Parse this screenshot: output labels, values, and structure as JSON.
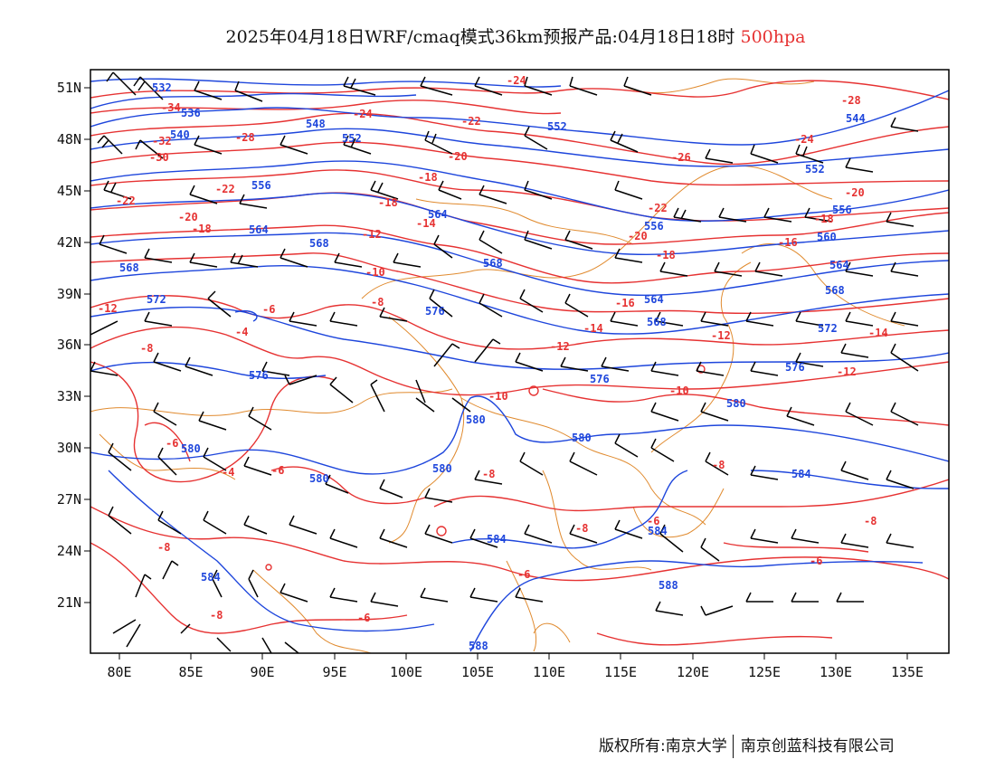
{
  "title": {
    "main": "2025年04月18日WRF/cmaq模式36km预报产品:04月18日18时",
    "level": "500hpa"
  },
  "footer": {
    "left": "版权所有:南京大学",
    "right": "南京创蓝科技有限公司"
  },
  "axes": {
    "x_ticks": [
      "80E",
      "85E",
      "90E",
      "95E",
      "100E",
      "105E",
      "110E",
      "115E",
      "120E",
      "125E",
      "130E",
      "135E"
    ],
    "y_ticks": [
      "51N",
      "48N",
      "45N",
      "42N",
      "39N",
      "36N",
      "33N",
      "30N",
      "27N",
      "24N",
      "21N"
    ],
    "lon_range": [
      78,
      138
    ],
    "lat_range": [
      18,
      52
    ]
  },
  "colors": {
    "height_contour": "#1e46dc",
    "temperature_contour": "#e63232",
    "boundary": "#e08a2e",
    "wind_barb": "#000000"
  },
  "height_labels": [
    "532",
    "536",
    "540",
    "544",
    "548",
    "552",
    "556",
    "560",
    "564",
    "568",
    "572",
    "576",
    "580",
    "584",
    "588"
  ],
  "temperature_labels": [
    "-34",
    "-32",
    "-30",
    "-28",
    "-26",
    "-24",
    "-22",
    "-20",
    "-18",
    "-16",
    "-14",
    "-12",
    "-10",
    "-8",
    "-6",
    "-4"
  ]
}
